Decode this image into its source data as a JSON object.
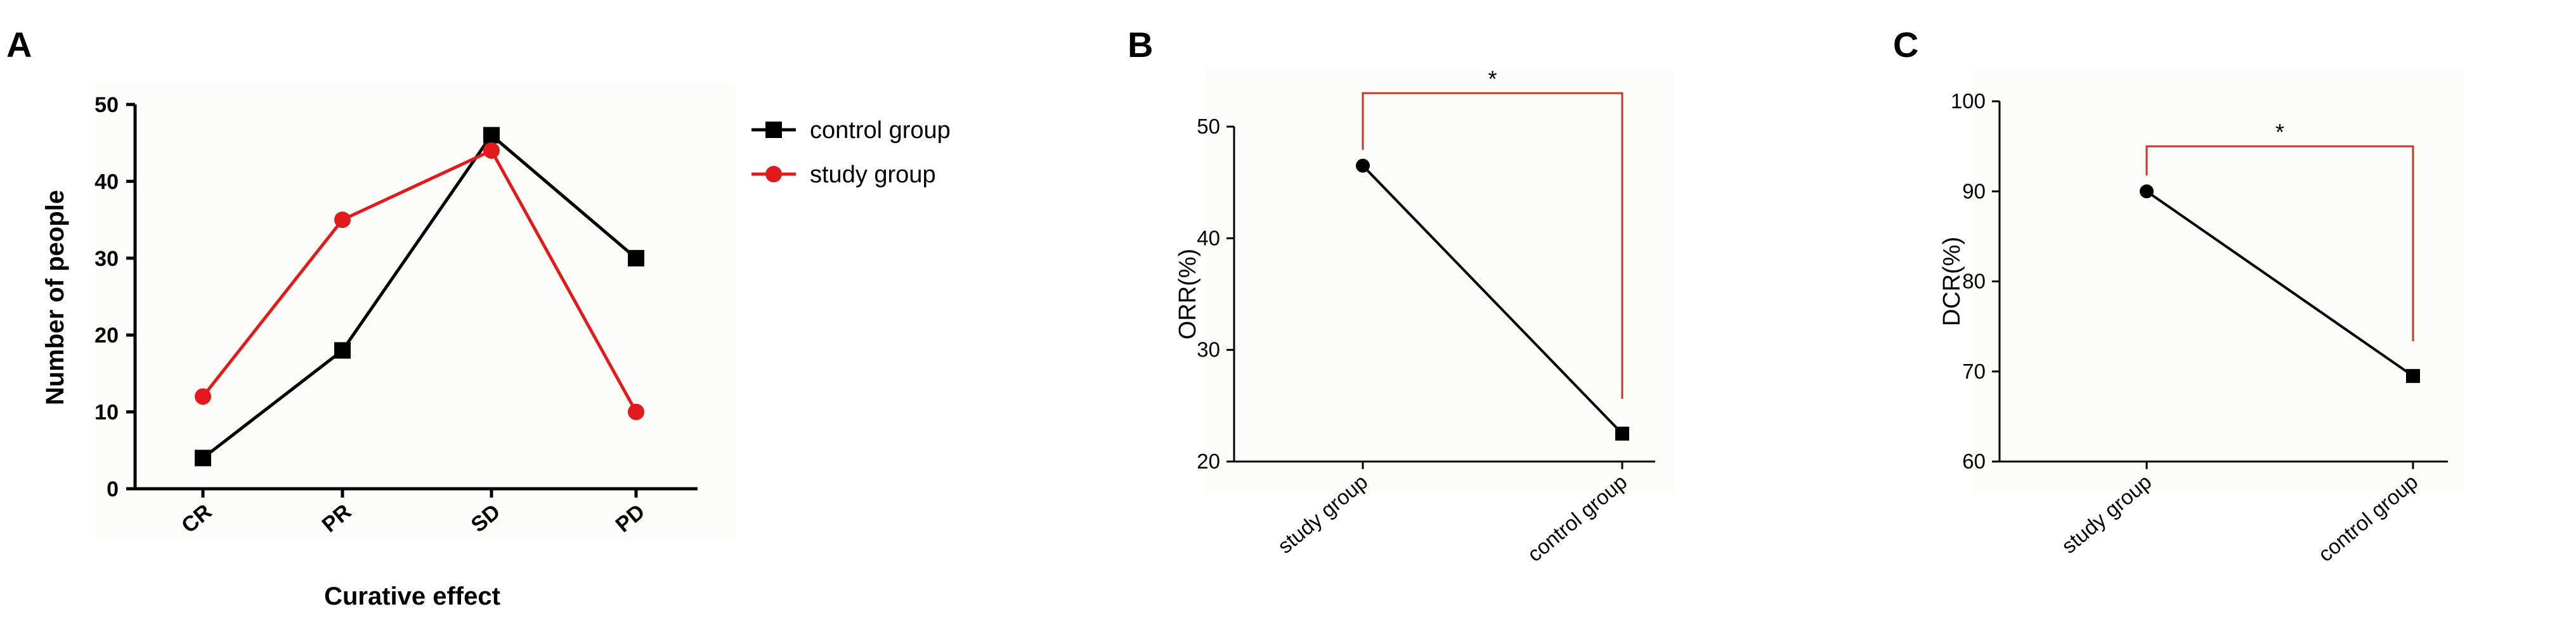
{
  "panels": [
    {
      "letter": "A",
      "chart_data": {
        "type": "line",
        "categories": [
          "CR",
          "PR",
          "SD",
          "PD"
        ],
        "series": [
          {
            "name": "control group",
            "values": [
              4,
              18,
              46,
              30
            ],
            "color": "#000000",
            "marker": "square"
          },
          {
            "name": "study group",
            "values": [
              12,
              35,
              44,
              10
            ],
            "color": "#e31a1c",
            "marker": "circle"
          }
        ],
        "xlabel": "Curative effect",
        "ylabel": "Number of people",
        "ylim": [
          0,
          50
        ],
        "yticks": [
          0,
          10,
          20,
          30,
          40,
          50
        ],
        "grid": false,
        "legend": "right"
      }
    },
    {
      "letter": "B",
      "chart_data": {
        "type": "line",
        "categories": [
          "study group",
          "control group"
        ],
        "values": [
          46.5,
          22.5
        ],
        "markers": [
          "circle",
          "square"
        ],
        "ylabel": "ORR(%)",
        "ylim": [
          20,
          50
        ],
        "yticks": [
          20,
          30,
          40,
          50
        ],
        "significance": {
          "label": "*",
          "bracket_top": 53,
          "color": "#c0392b"
        },
        "grid": false
      }
    },
    {
      "letter": "C",
      "chart_data": {
        "type": "line",
        "categories": [
          "study group",
          "control group"
        ],
        "values": [
          90,
          69.5
        ],
        "markers": [
          "circle",
          "square"
        ],
        "ylabel": "DCR(%)",
        "ylim": [
          60,
          100
        ],
        "yticks": [
          60,
          70,
          80,
          90,
          100
        ],
        "significance": {
          "label": "*",
          "bracket_top": 95,
          "color": "#c0392b"
        },
        "grid": false
      }
    }
  ]
}
